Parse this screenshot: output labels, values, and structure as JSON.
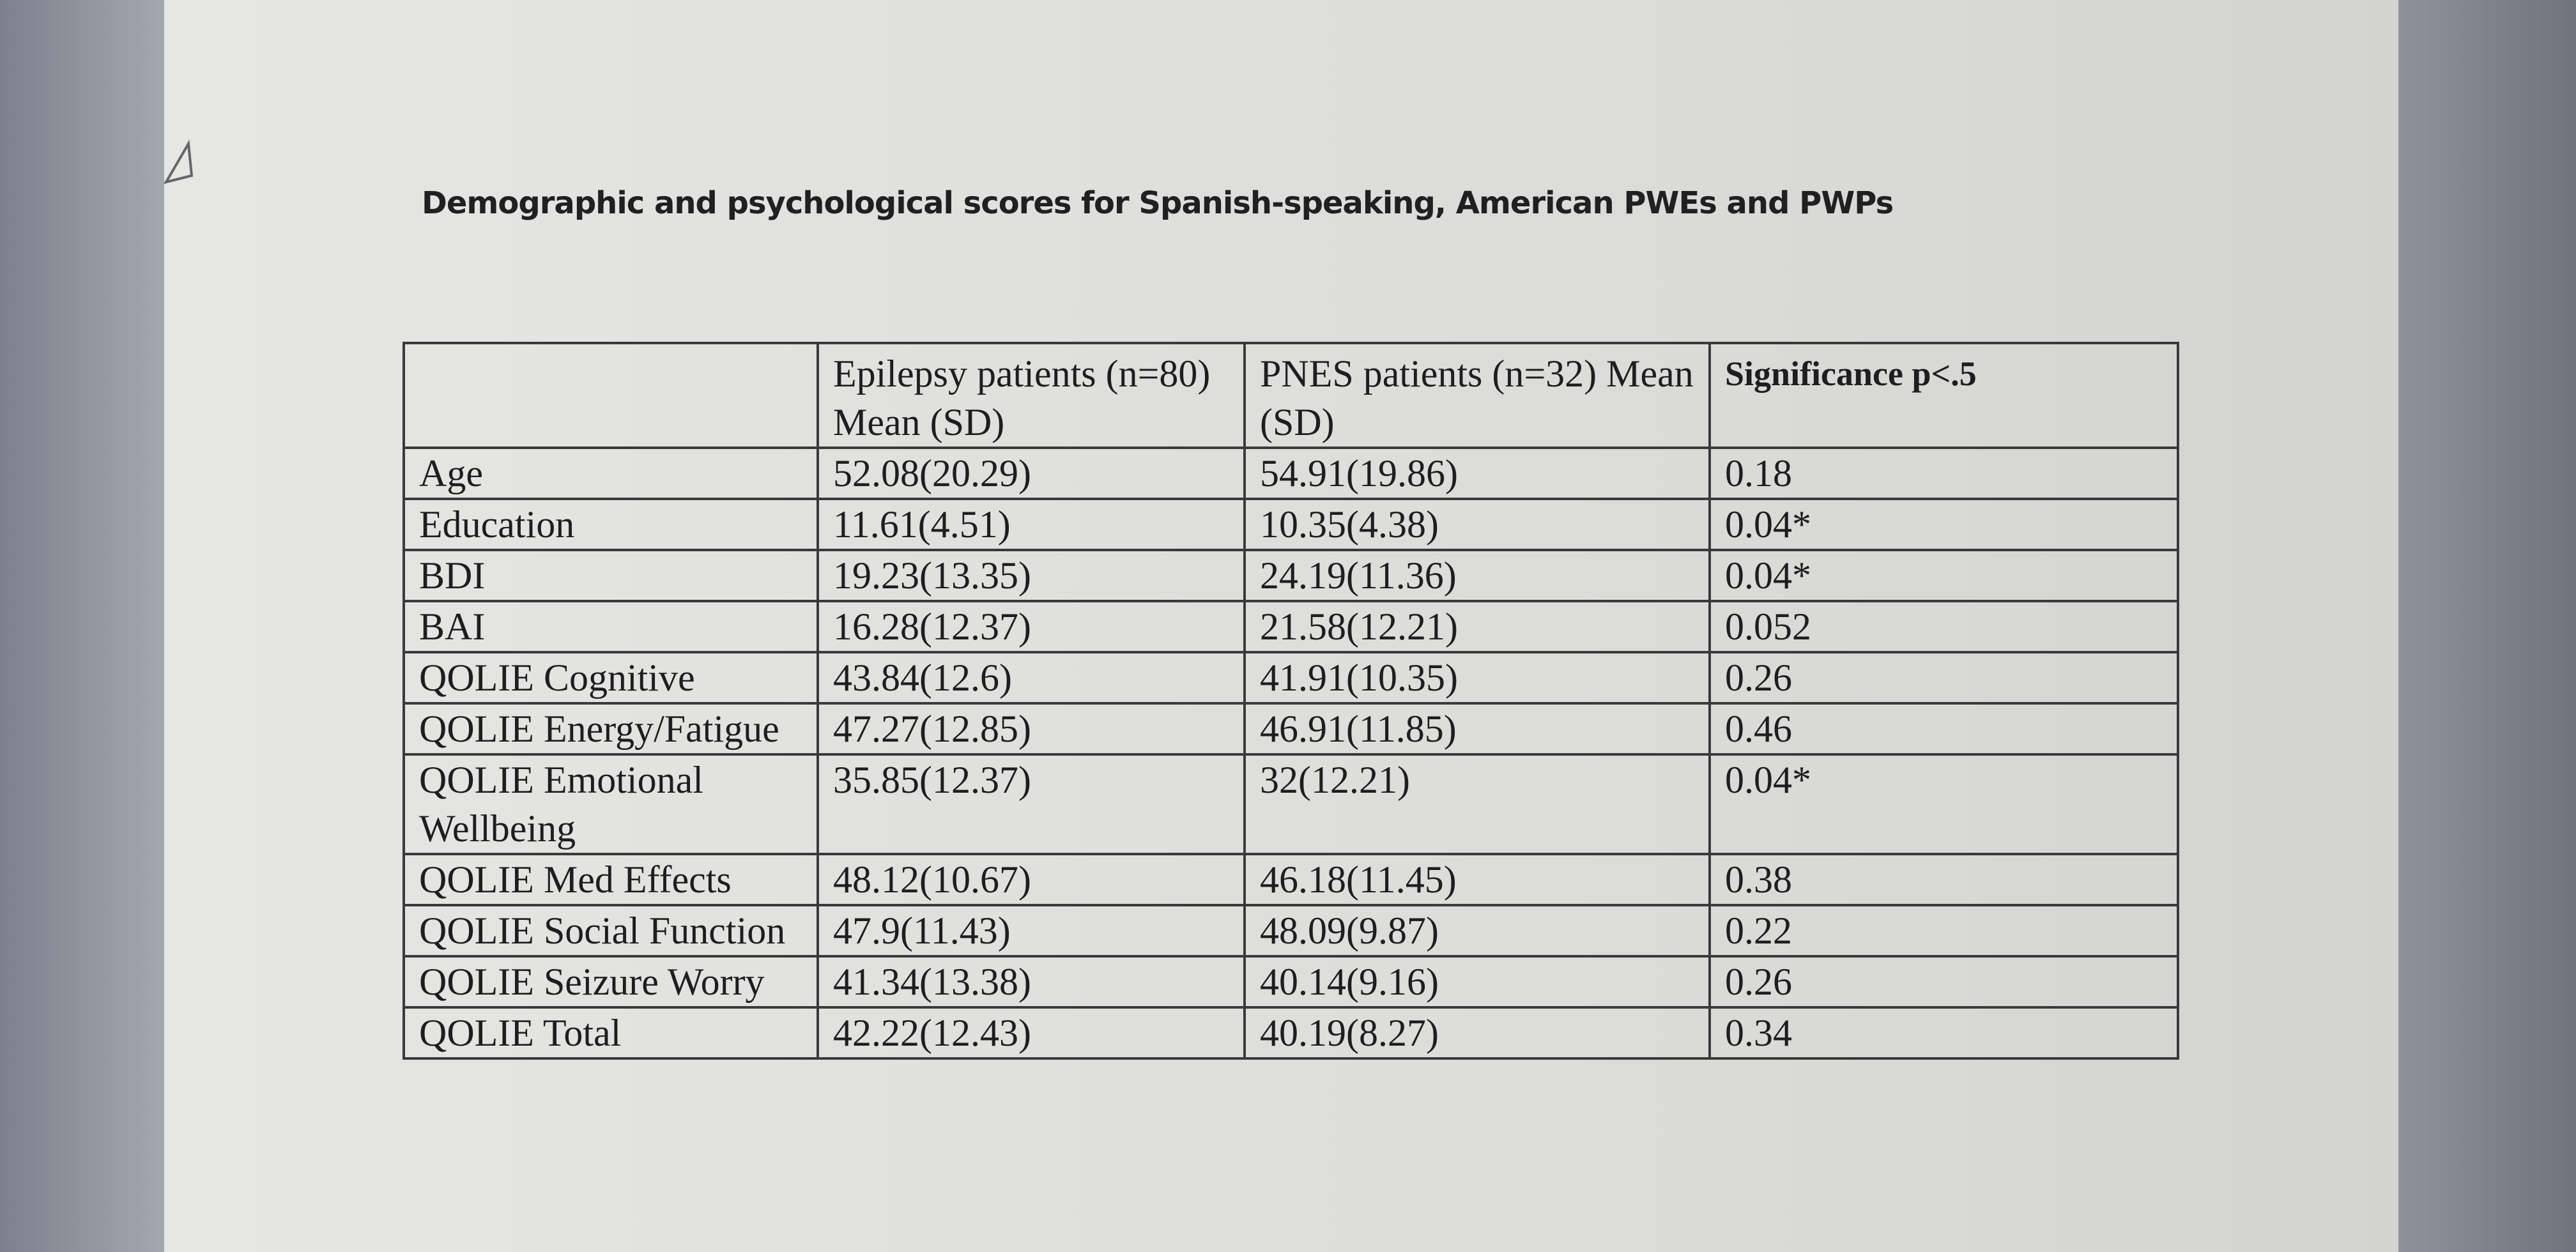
{
  "document": {
    "title": "Demographic and psychological scores for Spanish-speaking, American PWEs and PWPs"
  },
  "table": {
    "header": [
      "",
      "Epilepsy patients (n=80) Mean (SD)",
      "PNES patients (n=32) Mean (SD)",
      "Significance p<.5"
    ],
    "rows": [
      [
        "Age",
        "52.08(20.29)",
        "54.91(19.86)",
        "0.18"
      ],
      [
        "Education",
        "11.61(4.51)",
        "10.35(4.38)",
        "0.04*"
      ],
      [
        "BDI",
        "19.23(13.35)",
        "24.19(11.36)",
        "0.04*"
      ],
      [
        "BAI",
        "16.28(12.37)",
        "21.58(12.21)",
        "0.052"
      ],
      [
        "QOLIE Cognitive",
        "43.84(12.6)",
        "41.91(10.35)",
        "0.26"
      ],
      [
        "QOLIE Energy/Fatigue",
        "47.27(12.85)",
        "46.91(11.85)",
        "0.46"
      ],
      [
        "QOLIE Emotional Wellbeing",
        "35.85(12.37)",
        "32(12.21)",
        "0.04*"
      ],
      [
        "QOLIE Med Effects",
        "48.12(10.67)",
        "46.18(11.45)",
        "0.38"
      ],
      [
        "QOLIE Social Function",
        "47.9(11.43)",
        "48.09(9.87)",
        "0.22"
      ],
      [
        "QOLIE Seizure Worry",
        "41.34(13.38)",
        "40.14(9.16)",
        "0.26"
      ],
      [
        "QOLIE Total",
        "42.22(12.43)",
        "40.19(8.27)",
        "0.34"
      ]
    ]
  }
}
